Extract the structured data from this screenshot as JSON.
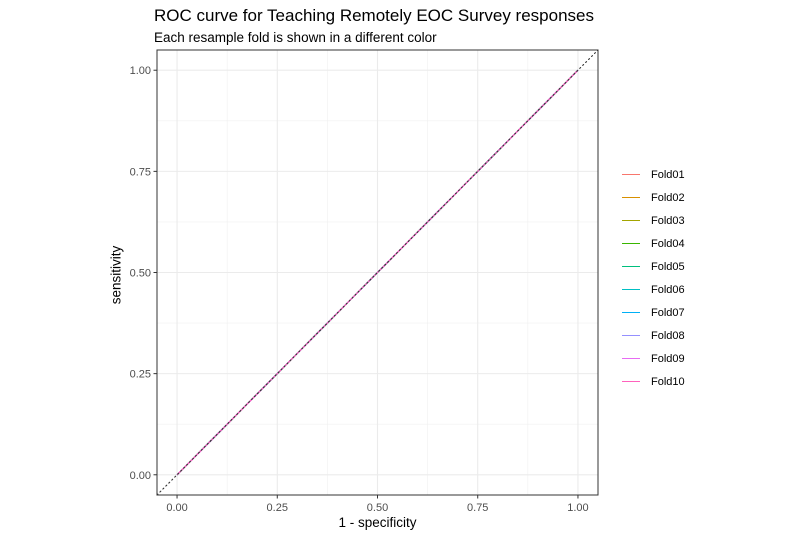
{
  "chart_data": {
    "type": "line",
    "title": "ROC curve for Teaching Remotely EOC Survey responses",
    "subtitle": "Each resample fold is shown in a different color",
    "xlabel": "1 - specificity",
    "ylabel": "sensitivity",
    "xlim": [
      -0.05,
      1.05
    ],
    "ylim": [
      -0.05,
      1.05
    ],
    "xticks": [
      "0.00",
      "0.25",
      "0.50",
      "0.75",
      "1.00"
    ],
    "yticks": [
      "0.00",
      "0.25",
      "0.50",
      "0.75",
      "1.00"
    ],
    "grid": true,
    "legend_position": "right",
    "reference_line": {
      "style": "dotted",
      "x": [
        -0.05,
        1.05
      ],
      "y": [
        -0.05,
        1.05
      ],
      "color": "#333333"
    },
    "series": [
      {
        "name": "Fold01",
        "color": "#F8766D",
        "x": [
          0,
          1
        ],
        "y": [
          0,
          1
        ]
      },
      {
        "name": "Fold02",
        "color": "#D89000",
        "x": [
          0,
          1
        ],
        "y": [
          0,
          1
        ]
      },
      {
        "name": "Fold03",
        "color": "#A3A500",
        "x": [
          0,
          1
        ],
        "y": [
          0,
          1
        ]
      },
      {
        "name": "Fold04",
        "color": "#39B600",
        "x": [
          0,
          1
        ],
        "y": [
          0,
          1
        ]
      },
      {
        "name": "Fold05",
        "color": "#00BF7D",
        "x": [
          0,
          1
        ],
        "y": [
          0,
          1
        ]
      },
      {
        "name": "Fold06",
        "color": "#00BFC4",
        "x": [
          0,
          1
        ],
        "y": [
          0,
          1
        ]
      },
      {
        "name": "Fold07",
        "color": "#00B0F6",
        "x": [
          0,
          1
        ],
        "y": [
          0,
          1
        ]
      },
      {
        "name": "Fold08",
        "color": "#9590FF",
        "x": [
          0,
          1
        ],
        "y": [
          0,
          1
        ]
      },
      {
        "name": "Fold09",
        "color": "#E76BF3",
        "x": [
          0,
          1
        ],
        "y": [
          0,
          1
        ]
      },
      {
        "name": "Fold10",
        "color": "#FF62BC",
        "x": [
          0,
          1
        ],
        "y": [
          0,
          1
        ]
      }
    ]
  }
}
